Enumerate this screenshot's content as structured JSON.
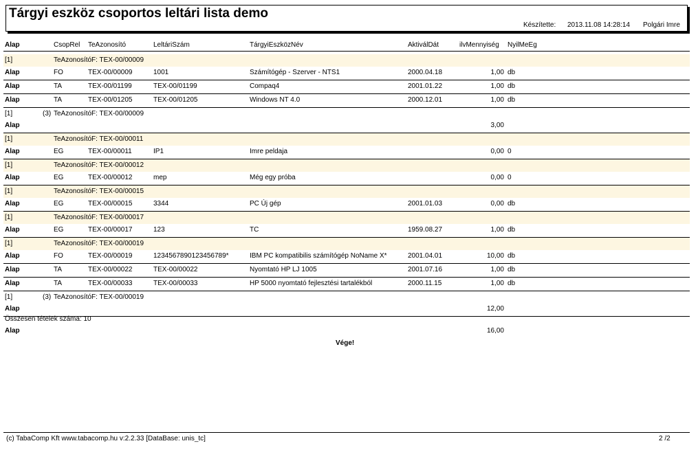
{
  "title": "Tárgyi eszköz csoportos leltári lista demo",
  "meta": {
    "made_by_label": "Készítette:",
    "datetime": "2013.11.08 14:28:14",
    "author": "Polgári Imre"
  },
  "header": {
    "col0": "Alap",
    "col1": "CsopRel",
    "col2": "TeAzonosító",
    "col3": "LeltáriSzám",
    "col4": "TárgyiEszközNév",
    "col5": "AktiválDát",
    "col6": "ilvMennyiség",
    "col7": "NyilMeEg"
  },
  "rows": [
    {
      "type": "group",
      "a": "[1]",
      "b": "TeAzonosítóF: TEX-00/00009"
    },
    {
      "type": "item",
      "alap": "Alap",
      "csop": "FO",
      "tea": "TEX-00/00009",
      "lelt": "1001",
      "nev": "Számítógép - Szerver - NTS1",
      "dat": "2000.04.18",
      "menny": "1,00",
      "me": "db"
    },
    {
      "type": "item",
      "alap": "Alap",
      "csop": "TA",
      "tea": "TEX-00/01199",
      "lelt": "TEX-00/01199",
      "nev": "Compaq4",
      "dat": "2001.01.22",
      "menny": "1,00",
      "me": "db"
    },
    {
      "type": "item",
      "alap": "Alap",
      "csop": "TA",
      "tea": "TEX-00/01205",
      "lelt": "TEX-00/01205",
      "nev": "Windows NT 4.0",
      "dat": "2000.12.01",
      "menny": "1,00",
      "me": "db"
    },
    {
      "type": "subtotal",
      "a": "[1]",
      "count": "(3)",
      "b": "TeAzonosítóF: TEX-00/00009",
      "alap": "Alap",
      "menny": "3,00"
    },
    {
      "type": "group",
      "a": "[1]",
      "b": "TeAzonosítóF: TEX-00/00011"
    },
    {
      "type": "item",
      "alap": "Alap",
      "csop": "EG",
      "tea": "TEX-00/00011",
      "lelt": "IP1",
      "nev": "Imre peldaja",
      "dat": "",
      "menny": "0,00",
      "me": "0"
    },
    {
      "type": "group",
      "a": "[1]",
      "b": "TeAzonosítóF: TEX-00/00012"
    },
    {
      "type": "item",
      "alap": "Alap",
      "csop": "EG",
      "tea": "TEX-00/00012",
      "lelt": "mep",
      "nev": "Még egy próba",
      "dat": "",
      "menny": "0,00",
      "me": "0"
    },
    {
      "type": "group",
      "a": "[1]",
      "b": "TeAzonosítóF: TEX-00/00015"
    },
    {
      "type": "item",
      "alap": "Alap",
      "csop": "EG",
      "tea": "TEX-00/00015",
      "lelt": "3344",
      "nev": "PC Új gép",
      "dat": "2001.01.03",
      "menny": "0,00",
      "me": "db"
    },
    {
      "type": "group",
      "a": "[1]",
      "b": "TeAzonosítóF: TEX-00/00017"
    },
    {
      "type": "item",
      "alap": "Alap",
      "csop": "EG",
      "tea": "TEX-00/00017",
      "lelt": "123",
      "nev": "TC",
      "dat": "1959.08.27",
      "menny": "1,00",
      "me": "db"
    },
    {
      "type": "group",
      "a": "[1]",
      "b": "TeAzonosítóF: TEX-00/00019"
    },
    {
      "type": "item",
      "alap": "Alap",
      "csop": "FO",
      "tea": "TEX-00/00019",
      "lelt": "1234567890123456789*",
      "nev": "IBM PC kompatibilis számítógép NoName X*",
      "dat": "2001.04.01",
      "menny": "10,00",
      "me": "db"
    },
    {
      "type": "item",
      "alap": "Alap",
      "csop": "TA",
      "tea": "TEX-00/00022",
      "lelt": "TEX-00/00022",
      "nev": "Nyomtató HP LJ 1005",
      "dat": "2001.07.16",
      "menny": "1,00",
      "me": "db"
    },
    {
      "type": "item",
      "alap": "Alap",
      "csop": "TA",
      "tea": "TEX-00/00033",
      "lelt": "TEX-00/00033",
      "nev": "HP 5000 nyomtató fejlesztési tartalékból",
      "dat": "2000.11.15",
      "menny": "1,00",
      "me": "db"
    },
    {
      "type": "subtotal",
      "a": "[1]",
      "count": "(3)",
      "b": "TeAzonosítóF: TEX-00/00019",
      "alap": "Alap",
      "menny": "12,00"
    }
  ],
  "totals": {
    "count_label": "Összesen tételek száma: 10",
    "alap": "Alap",
    "sum": "16,00",
    "end": "Vége!"
  },
  "footer": {
    "left": "(c) TabaComp Kft  www.tabacomp.hu  v:2.2.33 [DataBase: unis_tc]",
    "page": "2  /2"
  }
}
